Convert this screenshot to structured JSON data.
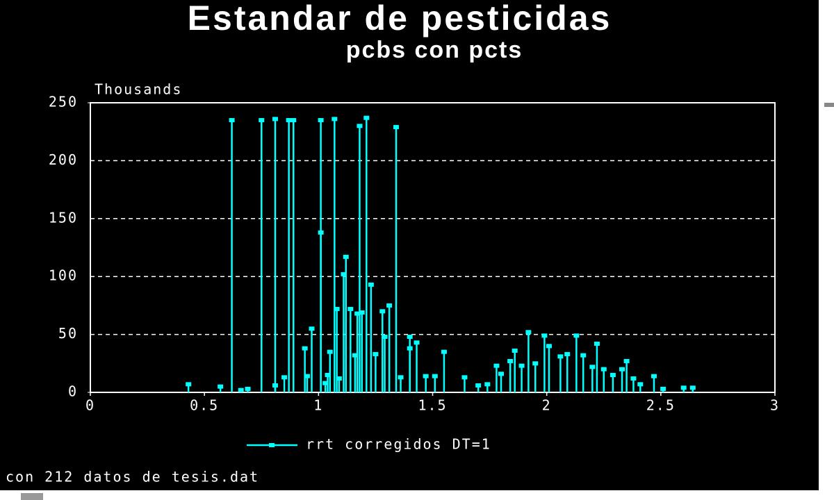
{
  "chart_data": {
    "type": "stem",
    "title": "Estandar de pesticidas",
    "subtitle": "pcbs con pcts",
    "y_label": "Thousands",
    "note": "con 212 datos de tesis.dat",
    "legend": "bottom",
    "xlim": [
      0,
      3
    ],
    "xticks": [
      0,
      0.5,
      1,
      1.5,
      2,
      2.5,
      3
    ],
    "ylim": [
      0,
      250
    ],
    "yticks": [
      0,
      50,
      100,
      150,
      200,
      250
    ],
    "grid": true,
    "series": [
      {
        "name": "rrt corregidos DT=1",
        "color": "#00ffff",
        "x": [
          0.43,
          0.57,
          0.62,
          0.66,
          0.69,
          0.75,
          0.81,
          0.81,
          0.85,
          0.87,
          0.89,
          0.94,
          0.95,
          0.97,
          1.01,
          1.01,
          1.03,
          1.04,
          1.05,
          1.07,
          1.08,
          1.09,
          1.11,
          1.12,
          1.14,
          1.16,
          1.17,
          1.18,
          1.19,
          1.21,
          1.23,
          1.25,
          1.28,
          1.29,
          1.31,
          1.34,
          1.36,
          1.4,
          1.4,
          1.43,
          1.47,
          1.51,
          1.55,
          1.64,
          1.7,
          1.74,
          1.78,
          1.8,
          1.84,
          1.86,
          1.89,
          1.92,
          1.95,
          1.99,
          2.01,
          2.06,
          2.09,
          2.13,
          2.16,
          2.2,
          2.22,
          2.25,
          2.29,
          2.33,
          2.35,
          2.38,
          2.41,
          2.47,
          2.51,
          2.6,
          2.64
        ],
        "values": [
          7,
          5,
          235,
          2,
          3,
          235,
          236,
          6,
          13,
          235,
          235,
          38,
          14,
          55,
          138,
          235,
          8,
          15,
          35,
          236,
          72,
          12,
          102,
          117,
          72,
          32,
          68,
          230,
          69,
          237,
          93,
          33,
          70,
          48,
          75,
          229,
          13,
          38,
          48,
          43,
          14,
          14,
          35,
          13,
          6,
          7,
          23,
          16,
          27,
          36,
          23,
          52,
          25,
          49,
          40,
          31,
          33,
          49,
          32,
          22,
          42,
          20,
          15,
          20,
          27,
          12,
          7,
          14,
          3,
          4,
          4
        ]
      }
    ]
  }
}
